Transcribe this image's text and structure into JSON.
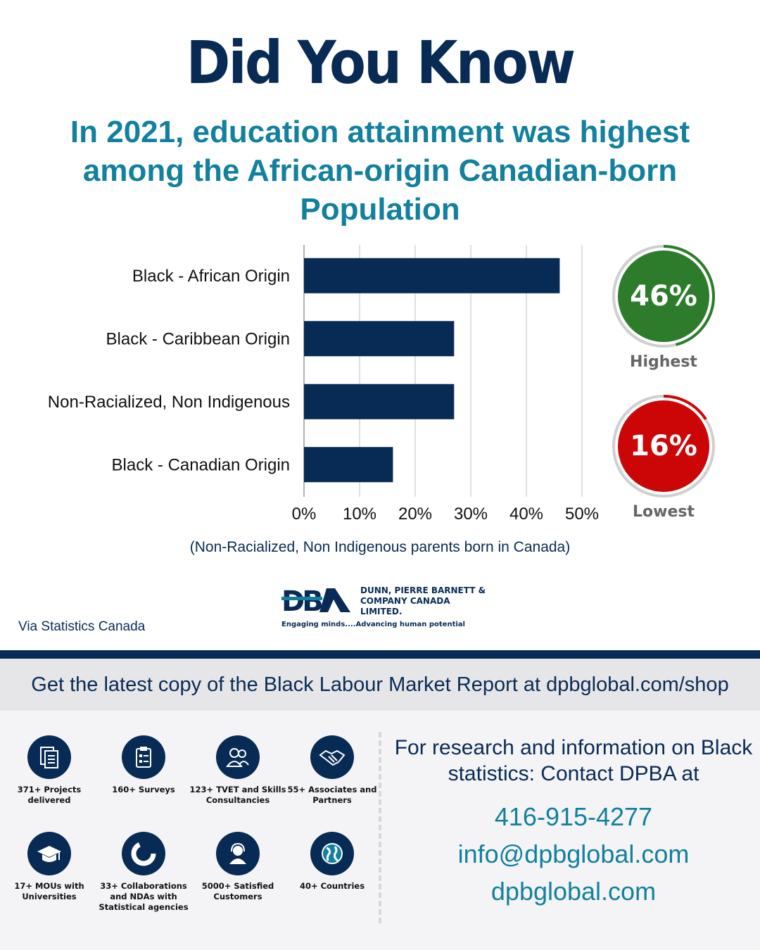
{
  "colors": {
    "navy": "#082b55",
    "teal": "#12809e",
    "green": "#2d7c2b",
    "red": "#cc0606",
    "grid": "#d6d6d6"
  },
  "title": "Did You Know",
  "subtitle": "In 2021, education attainment was highest among the African-origin Canadian-born Population",
  "chart_data": {
    "type": "bar",
    "orientation": "horizontal",
    "categories": [
      "Black - African Origin",
      "Black - Caribbean Origin",
      "Non-Racialized, Non Indigenous",
      "Black - Canadian Origin"
    ],
    "values": [
      46,
      27,
      27,
      16
    ],
    "xlim": [
      0,
      50
    ],
    "xticks": [
      0,
      10,
      20,
      30,
      40,
      50
    ],
    "tick_labels": [
      "0%",
      "10%",
      "20%",
      "30%",
      "40%",
      "50%"
    ],
    "grid": true
  },
  "highlights": {
    "highest": {
      "value": "46%",
      "label": "Highest",
      "progress": 0.46
    },
    "lowest": {
      "value": "16%",
      "label": "Lowest",
      "progress": 0.16
    }
  },
  "note": "(Non-Racialized, Non Indigenous parents born in Canada)",
  "source": "Via Statistics Canada",
  "logo": {
    "mark": "DBA",
    "company": "DUNN, PIERRE BARNETT & COMPANY CANADA LIMITED.",
    "tagline": "Engaging minds....Advancing human potential"
  },
  "cta": "Get the latest copy of the Black Labour Market Report at dpbglobal.com/shop",
  "features": [
    {
      "label": "371+ Projects delivered",
      "icon": "document-icon"
    },
    {
      "label": "160+ Surveys",
      "icon": "clipboard-icon"
    },
    {
      "label": "123+ TVET and Skills Consultancies",
      "icon": "people-icon"
    },
    {
      "label": "55+ Associates and Partners",
      "icon": "handshake-icon"
    },
    {
      "label": "17+ MOUs with Universities",
      "icon": "graduation-cap-icon"
    },
    {
      "label": "33+ Collaborations and NDAs with Statistical agencies",
      "icon": "pie-chart-icon"
    },
    {
      "label": "5000+ Satisfied Customers",
      "icon": "headset-icon"
    },
    {
      "label": "40+ Countries",
      "icon": "globe-icon"
    }
  ],
  "contact": {
    "heading": "For research and information on Black statistics: Contact DPBA at",
    "phone": "416-915-4277",
    "email": "info@dpbglobal.com",
    "website": "dpbglobal.com"
  }
}
